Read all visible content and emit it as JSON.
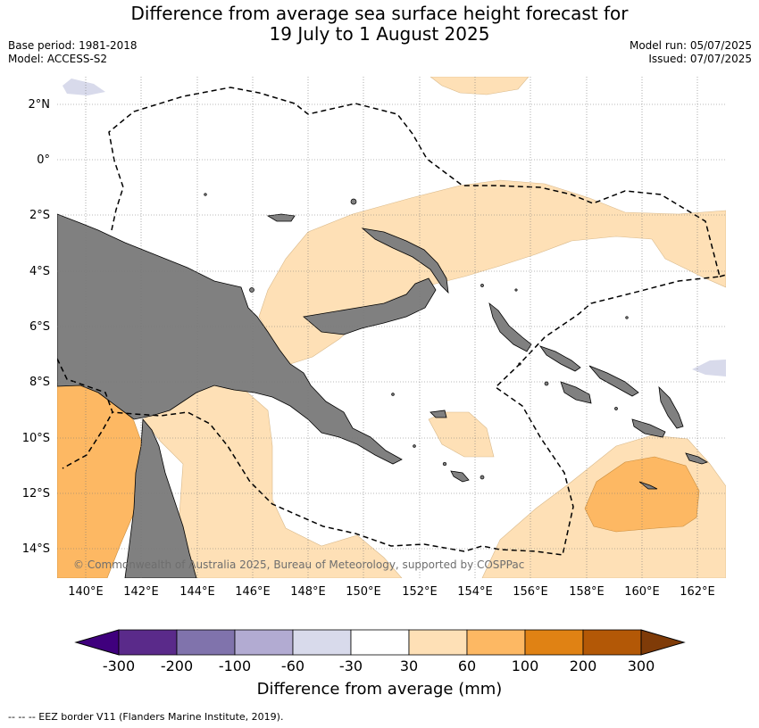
{
  "title_line1": "Difference from average sea surface height forecast for",
  "title_line2": "19 July to 1 August 2025",
  "base_period": "Base period: 1981-2018",
  "model": "Model: ACCESS-S2",
  "model_run": "Model run: 05/07/2025",
  "issued": "Issued: 07/07/2025",
  "lon_ticks": [
    "140°E",
    "142°E",
    "144°E",
    "146°E",
    "148°E",
    "150°E",
    "152°E",
    "154°E",
    "156°E",
    "158°E",
    "160°E",
    "162°E"
  ],
  "lat_ticks": [
    "2°N",
    "0°",
    "2°S",
    "4°S",
    "6°S",
    "8°S",
    "10°S",
    "12°S",
    "14°S"
  ],
  "copyright": "© Commonwealth of Australia 2025, Bureau of Meteorology, supported by COSPPac",
  "colorbar": {
    "label": "Difference from average (mm)",
    "ticks": [
      "-300",
      "-200",
      "-100",
      "-60",
      "-30",
      "30",
      "60",
      "100",
      "200",
      "300"
    ],
    "colors": [
      "#3f007d",
      "#5a2a8a",
      "#8073ac",
      "#b2abd2",
      "#d8daeb",
      "#ffffff",
      "#fee0b6",
      "#fdb863",
      "#e08214",
      "#b35806",
      "#7f3b08"
    ]
  },
  "colors": {
    "land": "#808080",
    "shade_30_60": "#fee0b6",
    "shade_60_100": "#fdb863",
    "shade_neg_30_60": "#d8daeb"
  },
  "footnote": "--  --  -- EEZ border V11 (Flanders Marine Institute, 2019)."
}
